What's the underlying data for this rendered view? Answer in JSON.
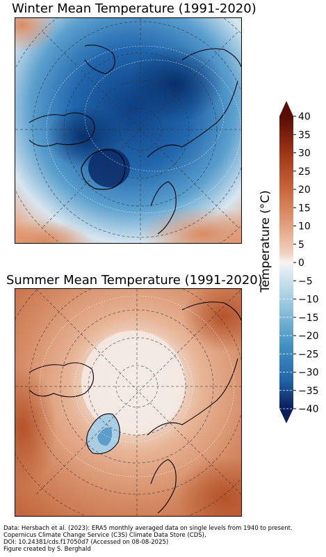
{
  "winter": {
    "title": "Winter Mean Temperature (1991-2020)"
  },
  "summer": {
    "title": "Summer Mean Temperature (1991-2020)"
  },
  "colorbar": {
    "label": "Temperature (°C)",
    "min": -40,
    "max": 40,
    "ticks": [
      40,
      35,
      30,
      25,
      20,
      15,
      10,
      5,
      0,
      -5,
      -10,
      -15,
      -20,
      -25,
      -30,
      -35,
      -40
    ],
    "colors": {
      "cold_extreme": "#081d58",
      "cold": "#2166ac",
      "cool": "#92c5de",
      "neutral": "#f7f4f2",
      "warm": "#e9a27d",
      "hot": "#b2502a",
      "hot_extreme": "#5a0b06"
    }
  },
  "footer": {
    "lines": [
      "Data: Hersbach et al. (2023): ERA5 monthly averaged data on single levels from 1940 to present.",
      "Copernicus Climate Change Service (C3S) Climate Data Store (CDS),",
      "DOI: 10.24381/cds.f17050d7 (Accessed on 08-08-2025)",
      "Figure created by S. Berghald"
    ]
  }
}
